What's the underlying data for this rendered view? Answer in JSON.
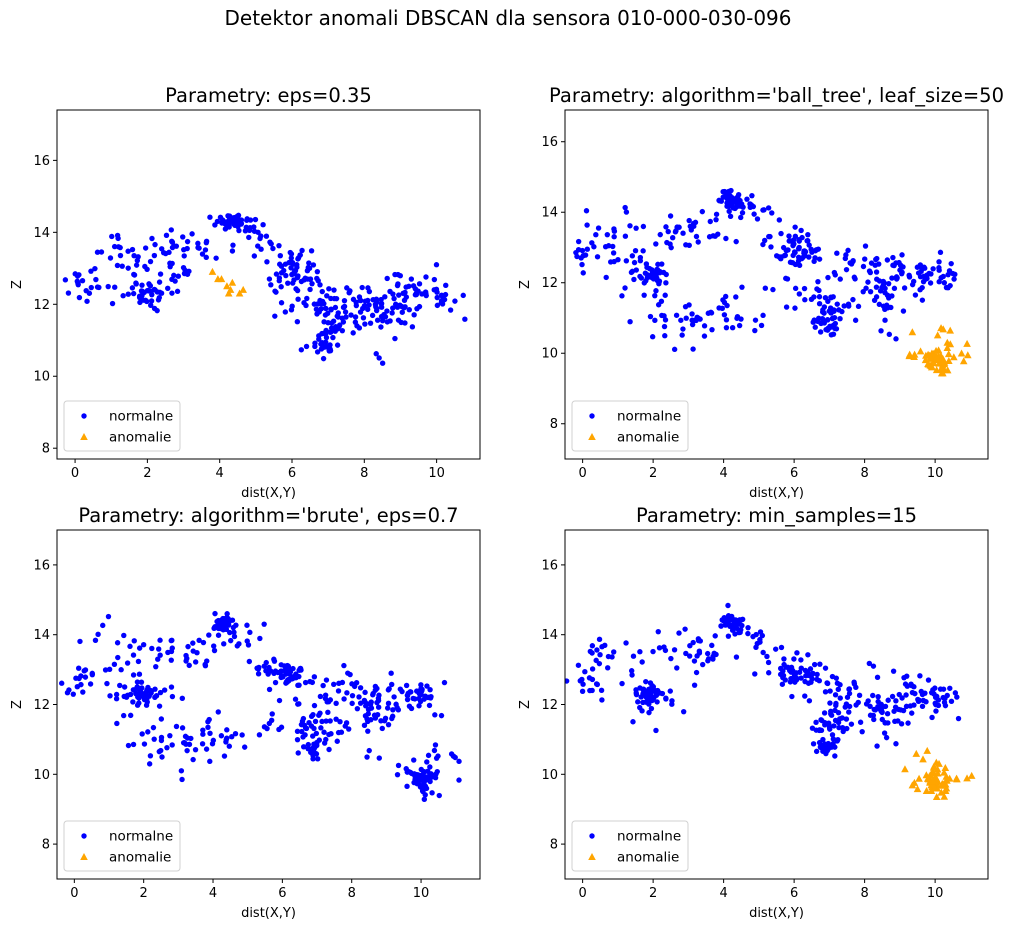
{
  "suptitle": "Detektor anomali DBSCAN dla sensora 010-000-030-096",
  "colors": {
    "normal": "#0000ff",
    "anomaly": "#ffa500"
  },
  "legend": {
    "normal": "normalne",
    "anomaly": "anomalie",
    "placement": "lower-left"
  },
  "chart_data": [
    {
      "type": "scatter",
      "title": "Parametry: eps=0.35",
      "xlabel": "dist(X,Y)",
      "ylabel": "Z",
      "xlim": [
        -0.5,
        11.2
      ],
      "ylim": [
        7.7,
        17.4
      ],
      "xticks": [
        0,
        2,
        4,
        6,
        8,
        10
      ],
      "yticks": [
        8,
        10,
        12,
        14,
        16
      ],
      "grid": false,
      "series": [
        {
          "name": "normalne",
          "marker": "circle",
          "color": "#0000ff",
          "clusters": [
            [
              0.1,
              12.9,
              0.2,
              5
            ],
            [
              0.3,
              12.5,
              0.35,
              14
            ],
            [
              1.1,
              13.6,
              0.3,
              12
            ],
            [
              1.6,
              13.1,
              0.4,
              14
            ],
            [
              2.0,
              12.3,
              0.3,
              38
            ],
            [
              2.6,
              12.7,
              0.4,
              14
            ],
            [
              2.9,
              13.5,
              0.4,
              20
            ],
            [
              3.5,
              13.6,
              0.3,
              12
            ],
            [
              4.3,
              14.3,
              0.2,
              46
            ],
            [
              4.8,
              14.0,
              0.3,
              12
            ],
            [
              5.3,
              13.6,
              0.3,
              10
            ],
            [
              6.1,
              12.9,
              0.35,
              48
            ],
            [
              5.7,
              12.1,
              0.4,
              10
            ],
            [
              6.6,
              12.3,
              0.5,
              22
            ],
            [
              7.1,
              11.5,
              0.45,
              38
            ],
            [
              6.9,
              10.8,
              0.25,
              26
            ],
            [
              7.8,
              11.9,
              0.5,
              26
            ],
            [
              8.6,
              11.8,
              0.4,
              42
            ],
            [
              9.5,
              12.4,
              0.5,
              26
            ],
            [
              10.1,
              12.2,
              0.25,
              24
            ],
            [
              8.5,
              10.4,
              0.15,
              3
            ],
            [
              10.7,
              11.6,
              0.05,
              1
            ]
          ]
        },
        {
          "name": "anomalie",
          "marker": "triangle",
          "color": "#ffa500",
          "points": [
            [
              3.8,
              12.9
            ],
            [
              3.95,
              12.7
            ],
            [
              4.05,
              12.7
            ],
            [
              4.2,
              12.5
            ],
            [
              4.25,
              12.3
            ],
            [
              4.3,
              12.4
            ],
            [
              4.35,
              12.6
            ],
            [
              4.55,
              12.3
            ],
            [
              4.65,
              12.4
            ]
          ]
        }
      ]
    },
    {
      "type": "scatter",
      "title": "Parametry: algorithm='ball_tree', leaf_size=50",
      "xlabel": "dist(X,Y)",
      "ylabel": "Z",
      "xlim": [
        -0.5,
        11.5
      ],
      "ylim": [
        7.0,
        16.9
      ],
      "xticks": [
        0,
        2,
        4,
        6,
        8,
        10
      ],
      "yticks": [
        8,
        10,
        12,
        14,
        16
      ],
      "grid": false,
      "series": [
        {
          "name": "normalne",
          "marker": "circle",
          "color": "#0000ff",
          "clusters": [
            [
              0.2,
              12.7,
              0.3,
              16
            ],
            [
              1.0,
              13.4,
              0.5,
              20
            ],
            [
              2.0,
              12.3,
              0.25,
              40
            ],
            [
              2.6,
              13.4,
              0.5,
              20
            ],
            [
              3.5,
              13.5,
              0.4,
              14
            ],
            [
              4.3,
              14.3,
              0.2,
              46
            ],
            [
              4.9,
              13.9,
              0.3,
              12
            ],
            [
              5.5,
              13.2,
              0.35,
              12
            ],
            [
              6.2,
              12.9,
              0.3,
              46
            ],
            [
              6.8,
              12.2,
              0.5,
              16
            ],
            [
              7.1,
              11.3,
              0.35,
              34
            ],
            [
              6.9,
              10.8,
              0.25,
              22
            ],
            [
              7.8,
              12.4,
              0.5,
              20
            ],
            [
              8.6,
              11.9,
              0.4,
              44
            ],
            [
              9.5,
              12.3,
              0.4,
              24
            ],
            [
              10.1,
              12.2,
              0.25,
              22
            ],
            [
              1.5,
              12.2,
              0.5,
              14
            ],
            [
              2.3,
              11.0,
              0.4,
              14
            ],
            [
              3.3,
              10.8,
              0.45,
              22
            ],
            [
              4.1,
              11.2,
              0.4,
              12
            ],
            [
              4.9,
              10.9,
              0.3,
              6
            ],
            [
              5.8,
              11.6,
              0.5,
              8
            ],
            [
              8.6,
              10.5,
              0.15,
              3
            ],
            [
              3.1,
              10.1,
              0.05,
              1
            ]
          ]
        },
        {
          "name": "anomalie",
          "marker": "triangle",
          "color": "#ffa500",
          "clusters": [
            [
              10.0,
              9.85,
              0.2,
              36
            ],
            [
              10.2,
              9.5,
              0.15,
              8
            ],
            [
              10.3,
              10.6,
              0.2,
              6
            ],
            [
              9.5,
              9.9,
              0.2,
              6
            ],
            [
              10.7,
              10.0,
              0.2,
              4
            ],
            [
              9.4,
              10.6,
              0.05,
              1
            ],
            [
              10.9,
              10.25,
              0.05,
              1
            ],
            [
              10.85,
              9.8,
              0.05,
              1
            ]
          ]
        }
      ]
    },
    {
      "type": "scatter",
      "title": "Parametry: algorithm='brute', eps=0.7",
      "xlabel": "dist(X,Y)",
      "ylabel": "Z",
      "xlim": [
        -0.5,
        11.7
      ],
      "ylim": [
        7.0,
        17.0
      ],
      "xticks": [
        0,
        2,
        4,
        6,
        8,
        10
      ],
      "yticks": [
        8,
        10,
        12,
        14,
        16
      ],
      "grid": false,
      "series": [
        {
          "name": "normalne",
          "marker": "circle",
          "color": "#0000ff",
          "clusters": [
            [
              0.2,
              12.7,
              0.3,
              16
            ],
            [
              1.0,
              13.4,
              0.5,
              20
            ],
            [
              2.0,
              12.3,
              0.25,
              40
            ],
            [
              2.6,
              13.4,
              0.5,
              20
            ],
            [
              3.5,
              13.5,
              0.4,
              14
            ],
            [
              4.3,
              14.3,
              0.2,
              46
            ],
            [
              4.9,
              13.9,
              0.3,
              12
            ],
            [
              5.5,
              13.2,
              0.35,
              12
            ],
            [
              6.2,
              12.9,
              0.3,
              46
            ],
            [
              6.8,
              12.2,
              0.5,
              16
            ],
            [
              7.1,
              11.3,
              0.35,
              34
            ],
            [
              6.9,
              10.8,
              0.25,
              22
            ],
            [
              7.8,
              12.4,
              0.5,
              20
            ],
            [
              8.6,
              11.9,
              0.4,
              44
            ],
            [
              9.5,
              12.3,
              0.4,
              24
            ],
            [
              10.1,
              12.2,
              0.25,
              22
            ],
            [
              1.5,
              12.2,
              0.5,
              14
            ],
            [
              2.3,
              11.0,
              0.4,
              14
            ],
            [
              3.3,
              10.8,
              0.45,
              22
            ],
            [
              4.1,
              11.2,
              0.4,
              12
            ],
            [
              4.9,
              10.9,
              0.3,
              6
            ],
            [
              5.8,
              11.6,
              0.5,
              8
            ],
            [
              8.6,
              10.5,
              0.15,
              3
            ],
            [
              10.0,
              9.85,
              0.2,
              36
            ],
            [
              10.2,
              9.5,
              0.15,
              8
            ],
            [
              10.3,
              10.6,
              0.2,
              6
            ],
            [
              9.6,
              10.1,
              0.25,
              8
            ],
            [
              10.8,
              10.1,
              0.3,
              6
            ],
            [
              3.1,
              9.8,
              0.05,
              1
            ],
            [
              11.0,
              10.5,
              0.05,
              1
            ]
          ]
        },
        {
          "name": "anomalie",
          "marker": "triangle",
          "color": "#ffa500",
          "points": []
        }
      ]
    },
    {
      "type": "scatter",
      "title": "Parametry: min_samples=15",
      "xlabel": "dist(X,Y)",
      "ylabel": "Z",
      "xlim": [
        -0.5,
        11.5
      ],
      "ylim": [
        7.0,
        17.0
      ],
      "xticks": [
        0,
        2,
        4,
        6,
        8,
        10
      ],
      "yticks": [
        8,
        10,
        12,
        14,
        16
      ],
      "grid": false,
      "series": [
        {
          "name": "normalne",
          "marker": "circle",
          "color": "#0000ff",
          "clusters": [
            [
              0.2,
              12.7,
              0.3,
              16
            ],
            [
              1.0,
              13.4,
              0.5,
              20
            ],
            [
              2.0,
              12.3,
              0.25,
              40
            ],
            [
              2.6,
              13.4,
              0.5,
              20
            ],
            [
              3.5,
              13.5,
              0.4,
              14
            ],
            [
              4.3,
              14.3,
              0.2,
              46
            ],
            [
              4.9,
              13.9,
              0.3,
              12
            ],
            [
              5.5,
              13.2,
              0.35,
              12
            ],
            [
              6.2,
              12.9,
              0.3,
              46
            ],
            [
              6.8,
              12.2,
              0.5,
              16
            ],
            [
              7.1,
              11.3,
              0.35,
              34
            ],
            [
              6.9,
              10.8,
              0.25,
              22
            ],
            [
              7.8,
              12.4,
              0.5,
              20
            ],
            [
              8.6,
              11.9,
              0.4,
              44
            ],
            [
              9.5,
              12.3,
              0.4,
              24
            ],
            [
              10.1,
              12.2,
              0.25,
              22
            ],
            [
              1.5,
              12.2,
              0.5,
              14
            ],
            [
              8.6,
              11.0,
              0.15,
              3
            ],
            [
              10.6,
              11.6,
              0.05,
              1
            ]
          ]
        },
        {
          "name": "anomalie",
          "marker": "triangle",
          "color": "#ffa500",
          "clusters": [
            [
              10.0,
              9.85,
              0.2,
              36
            ],
            [
              10.2,
              9.5,
              0.15,
              8
            ],
            [
              9.9,
              10.3,
              0.2,
              6
            ],
            [
              9.5,
              9.8,
              0.2,
              6
            ],
            [
              10.7,
              9.9,
              0.2,
              4
            ],
            [
              9.8,
              10.7,
              0.05,
              1
            ],
            [
              10.9,
              9.85,
              0.05,
              1
            ]
          ]
        }
      ]
    }
  ]
}
